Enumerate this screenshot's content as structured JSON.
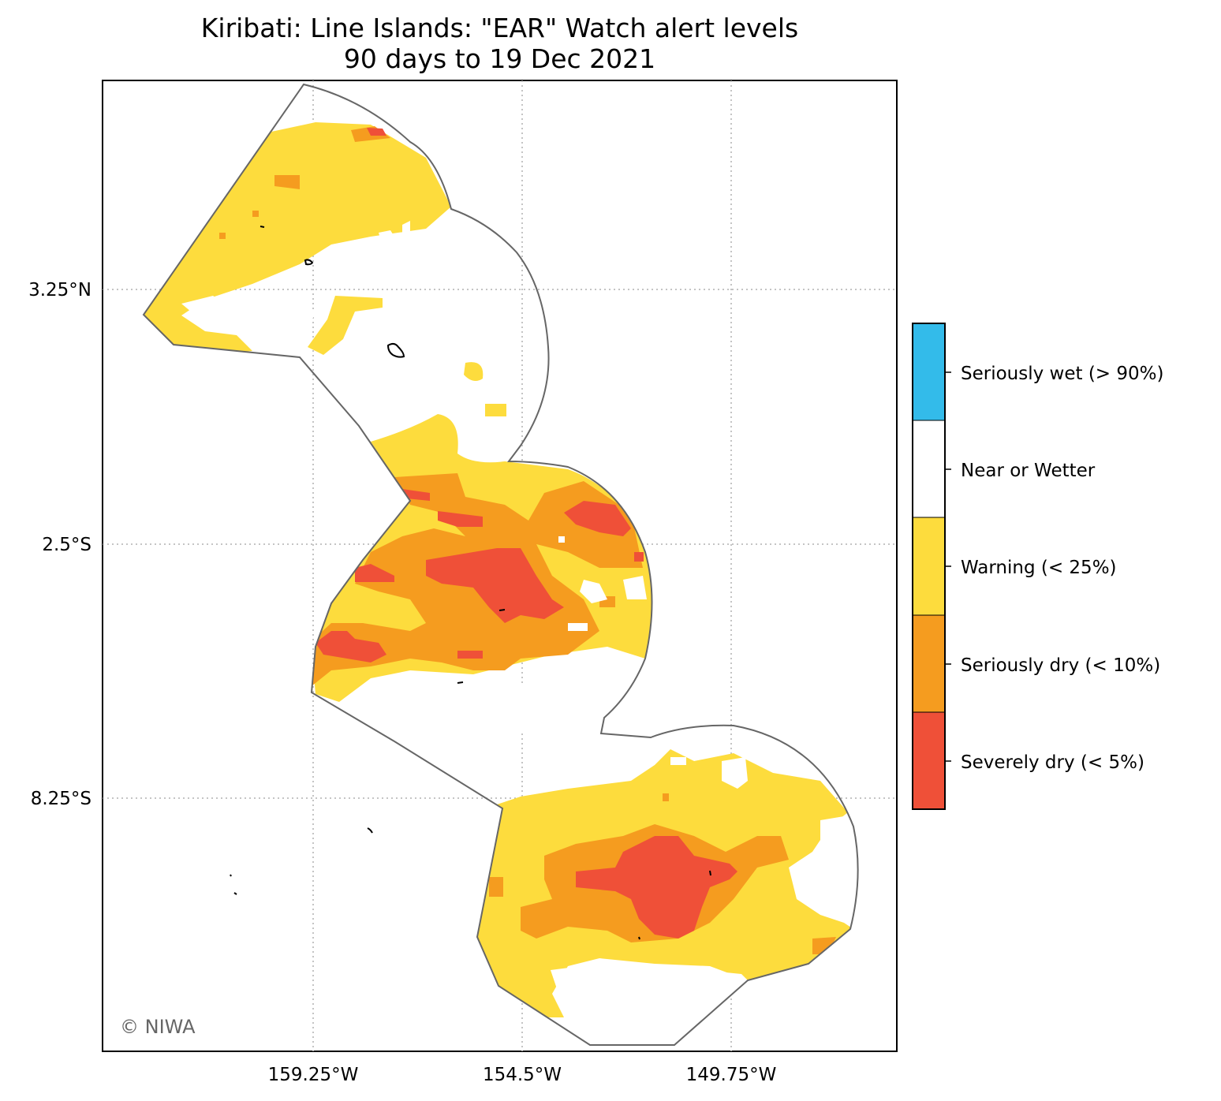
{
  "title_line1": "Kiribati: Line Islands: \"EAR\" Watch alert levels",
  "title_line2": "90 days to 19 Dec 2021",
  "lat_labels": [
    "3.25°N",
    "2.5°S",
    "8.25°S"
  ],
  "lon_labels": [
    "159.25°W",
    "154.5°W",
    "149.75°W"
  ],
  "credit": "© NIWA",
  "legend": [
    {
      "label": "Seriously wet (> 90%)",
      "color": "#33bbea"
    },
    {
      "label": "Near or Wetter",
      "color": "#ffffff"
    },
    {
      "label": "Warning (< 25%)",
      "color": "#fddc3d"
    },
    {
      "label": "Seriously dry (< 10%)",
      "color": "#f59c1f"
    },
    {
      "label": "Severely dry (< 5%)",
      "color": "#ef5038"
    }
  ],
  "colors": {
    "warning": "#fddc3d",
    "seriously_dry": "#f59c1f",
    "severely_dry": "#ef5038",
    "boundary": "#666666",
    "grid": "#b0b0b0"
  }
}
